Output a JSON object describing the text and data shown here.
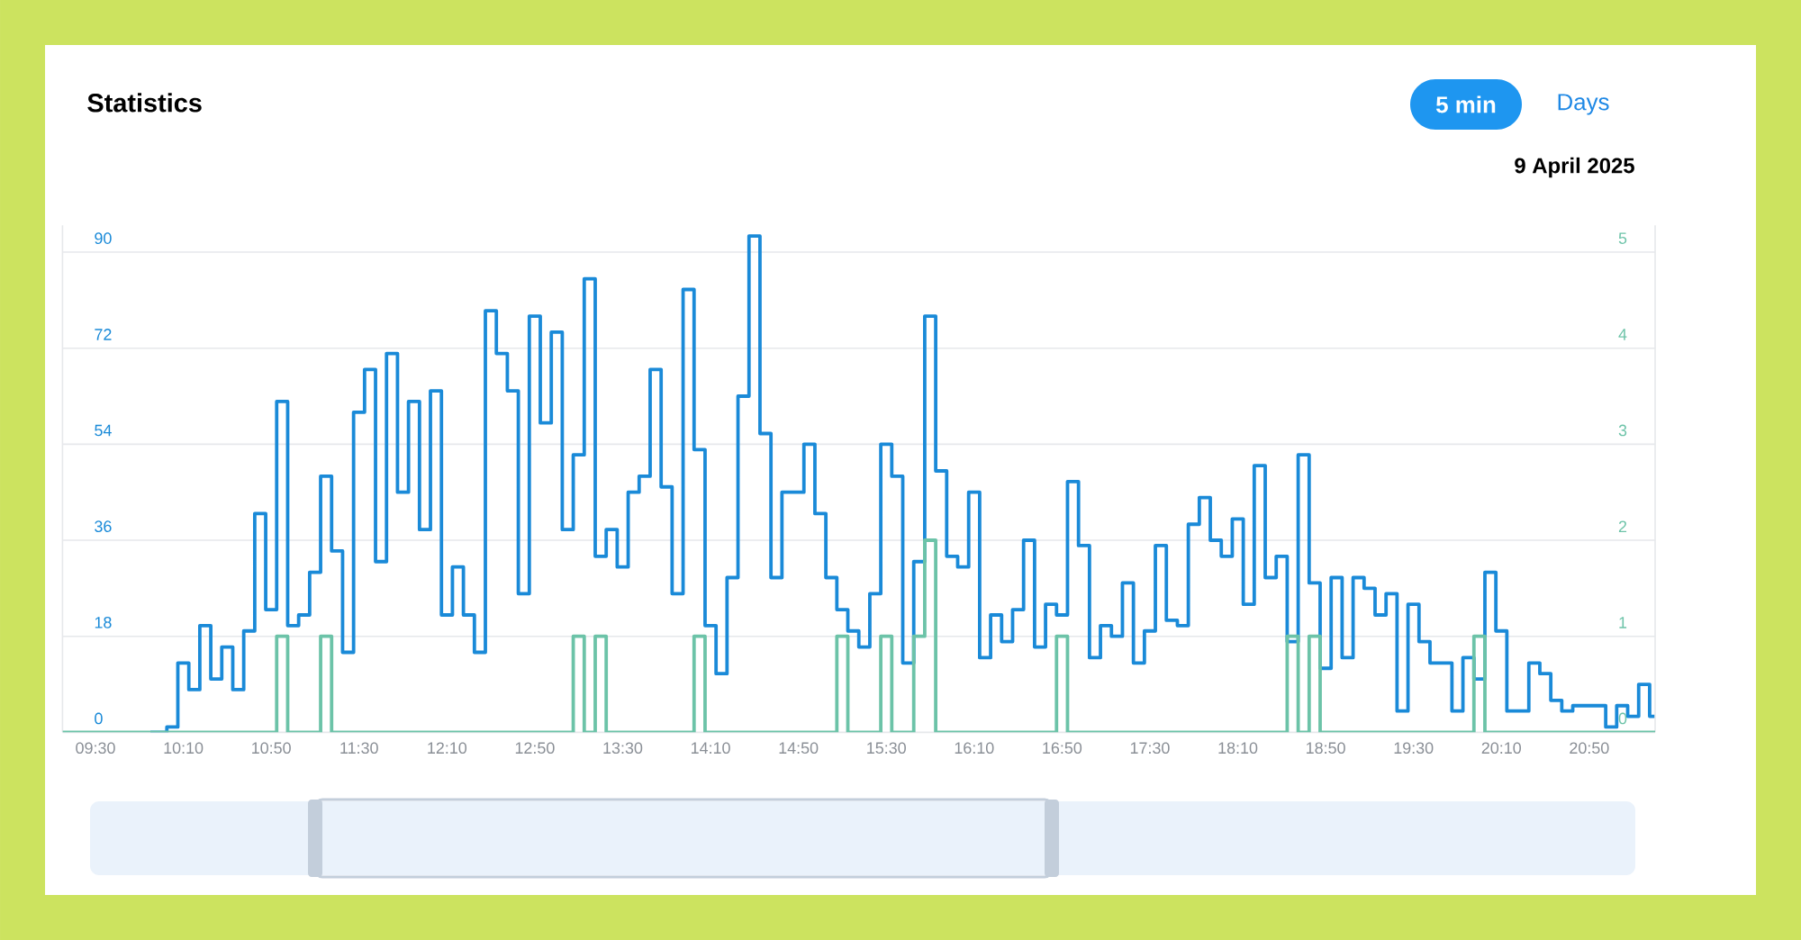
{
  "chart_data": {
    "type": "step",
    "title": "Statistics",
    "subtitle": "9 April 2025",
    "annotations": [
      "5 min",
      "Days"
    ],
    "x": [
      9.25,
      9.3333,
      9.4167,
      9.5,
      9.5833,
      9.6667,
      9.75,
      9.8333,
      9.9167,
      10,
      10.0833,
      10.1667,
      10.25,
      10.3333,
      10.4167,
      10.5,
      10.5833,
      10.6667,
      10.75,
      10.8333,
      10.9167,
      11,
      11.0833,
      11.1667,
      11.25,
      11.3333,
      11.4167,
      11.5,
      11.5833,
      11.6667,
      11.75,
      11.8333,
      11.9167,
      12,
      12.0833,
      12.1667,
      12.25,
      12.3333,
      12.4167,
      12.5,
      12.5833,
      12.6667,
      12.75,
      12.8333,
      12.9167,
      13,
      13.0833,
      13.1667,
      13.25,
      13.3333,
      13.4167,
      13.5,
      13.5833,
      13.6667,
      13.75,
      13.8333,
      13.9167,
      14,
      14.0833,
      14.1667,
      14.25,
      14.3333,
      14.4167,
      14.5,
      14.5833,
      14.6667,
      14.75,
      14.8333,
      14.9167,
      15,
      15.0833,
      15.1667,
      15.25,
      15.3333,
      15.4167,
      15.5,
      15.5833,
      15.6667,
      15.75,
      15.8333,
      15.9167,
      16,
      16.0833,
      16.1667,
      16.25,
      16.3333,
      16.4167,
      16.5,
      16.5833,
      16.6667,
      16.75,
      16.8333,
      16.9167,
      17,
      17.0833,
      17.1667,
      17.25,
      17.3333,
      17.4167,
      17.5,
      17.5833,
      17.6667,
      17.75,
      17.8333,
      17.9167,
      18,
      18.0833,
      18.1667,
      18.25,
      18.3333,
      18.4167,
      18.5,
      18.5833,
      18.6667,
      18.75,
      18.8333,
      18.9167,
      19,
      19.0833,
      19.1667,
      19.25,
      19.3333,
      19.4167,
      19.5,
      19.5833,
      19.6667,
      19.75,
      19.8333,
      19.9167,
      20,
      20.0833,
      20.1667,
      20.25,
      20.3333,
      20.4167,
      20.5,
      20.5833,
      20.6667,
      20.75,
      20.8333,
      20.9167,
      21,
      21.0833,
      21.1667,
      21.25,
      21.3333
    ],
    "xlim": [
      9.25,
      21.3333
    ],
    "xticks": [
      {
        "value": 9.5,
        "label": "09:30"
      },
      {
        "value": 10.1667,
        "label": "10:10"
      },
      {
        "value": 10.8333,
        "label": "10:50"
      },
      {
        "value": 11.5,
        "label": "11:30"
      },
      {
        "value": 12.1667,
        "label": "12:10"
      },
      {
        "value": 12.8333,
        "label": "12:50"
      },
      {
        "value": 13.5,
        "label": "13:30"
      },
      {
        "value": 14.1667,
        "label": "14:10"
      },
      {
        "value": 14.8333,
        "label": "14:50"
      },
      {
        "value": 15.5,
        "label": "15:30"
      },
      {
        "value": 16.1667,
        "label": "16:10"
      },
      {
        "value": 16.8333,
        "label": "16:50"
      },
      {
        "value": 17.5,
        "label": "17:30"
      },
      {
        "value": 18.1667,
        "label": "18:10"
      },
      {
        "value": 18.8333,
        "label": "18:50"
      },
      {
        "value": 19.5,
        "label": "19:30"
      },
      {
        "value": 20.1667,
        "label": "20:10"
      },
      {
        "value": 20.8333,
        "label": "20:50"
      }
    ],
    "ylim": [
      0,
      95
    ],
    "yticks": [
      0,
      18,
      36,
      54,
      72,
      90
    ],
    "y2lim": [
      0,
      5.2778
    ],
    "y2ticks": [
      0,
      1,
      2,
      3,
      4,
      5
    ],
    "grid": "y",
    "series": [
      {
        "color": "#1a8ad8",
        "values": [
          null,
          null,
          null,
          null,
          null,
          null,
          null,
          null,
          0,
          0,
          1,
          13,
          8,
          20,
          10,
          16,
          8,
          19,
          41,
          23,
          62,
          20,
          22,
          30,
          48,
          34,
          15,
          60,
          68,
          32,
          71,
          45,
          62,
          38,
          64,
          22,
          31,
          22,
          15,
          79,
          71,
          64,
          26,
          78,
          58,
          75,
          38,
          52,
          85,
          33,
          38,
          31,
          45,
          48,
          68,
          46,
          26,
          83,
          53,
          20,
          11,
          29,
          63,
          93,
          56,
          29,
          45,
          45,
          54,
          41,
          29,
          23,
          19,
          16,
          26,
          54,
          48,
          13,
          32,
          78,
          49,
          33,
          31,
          45,
          14,
          22,
          17,
          23,
          36,
          16,
          24,
          22,
          47,
          35,
          14,
          20,
          18,
          28,
          13,
          19,
          35,
          21,
          20,
          39,
          44,
          36,
          33,
          40,
          24,
          50,
          29,
          33,
          17,
          52,
          28,
          12,
          29,
          14,
          29,
          27,
          22,
          26,
          4,
          24,
          17,
          13,
          13,
          4,
          14,
          10,
          30,
          19,
          4,
          4,
          13,
          11,
          6,
          4,
          5,
          5,
          5,
          1,
          5,
          3,
          9,
          3
        ]
      },
      {
        "color": "#6cc3a8",
        "axis": "y2",
        "values": [
          0,
          0,
          0,
          0,
          0,
          0,
          0,
          0,
          0,
          0,
          0,
          0,
          0,
          0,
          0,
          0,
          0,
          0,
          0,
          0,
          1,
          0,
          0,
          0,
          1,
          0,
          0,
          0,
          0,
          0,
          0,
          0,
          0,
          0,
          0,
          0,
          0,
          0,
          0,
          0,
          0,
          0,
          0,
          0,
          0,
          0,
          0,
          1,
          0,
          1,
          0,
          0,
          0,
          0,
          0,
          0,
          0,
          0,
          1,
          0,
          0,
          0,
          0,
          0,
          0,
          0,
          0,
          0,
          0,
          0,
          0,
          1,
          0,
          0,
          0,
          1,
          0,
          0,
          1,
          2,
          0,
          0,
          0,
          0,
          0,
          0,
          0,
          0,
          0,
          0,
          0,
          1,
          0,
          0,
          0,
          0,
          0,
          0,
          0,
          0,
          0,
          0,
          0,
          0,
          0,
          0,
          0,
          0,
          0,
          0,
          0,
          0,
          1,
          0,
          1,
          0,
          0,
          0,
          0,
          0,
          0,
          0,
          0,
          0,
          0,
          0,
          0,
          0,
          0,
          1,
          0,
          0,
          0,
          0,
          0,
          0,
          0,
          0,
          0,
          0,
          0,
          0,
          0,
          0,
          0,
          0
        ]
      }
    ]
  }
}
